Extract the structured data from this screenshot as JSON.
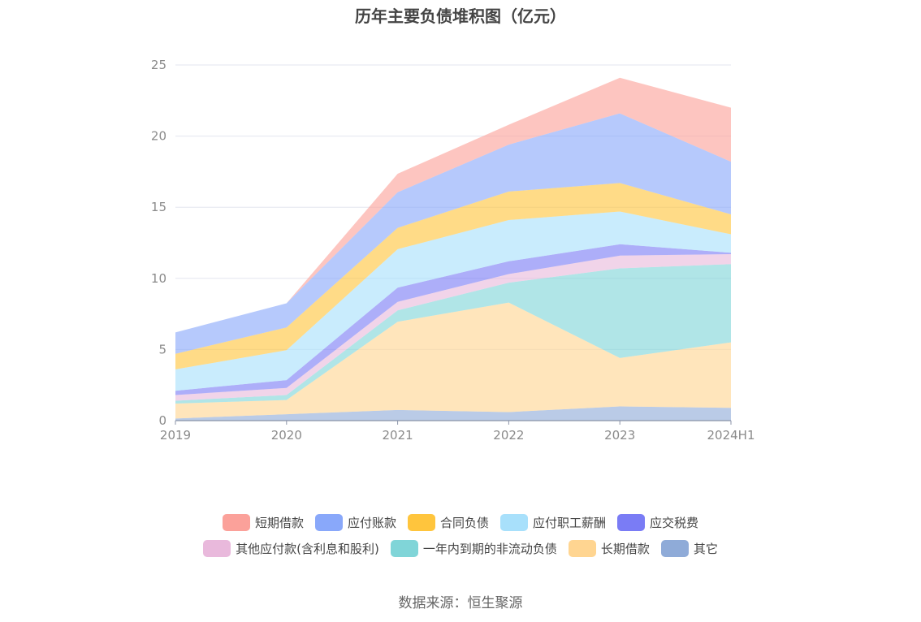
{
  "title": "历年主要负债堆积图（亿元）",
  "source": "数据来源：恒生聚源",
  "chart_data": {
    "type": "area",
    "stacked": true,
    "categories": [
      "2019",
      "2020",
      "2021",
      "2022",
      "2023",
      "2024H1"
    ],
    "ylim": [
      0,
      25
    ],
    "yticks": [
      "0",
      "5",
      "10",
      "15",
      "20",
      "25"
    ],
    "grid": true,
    "legend_position": "bottom",
    "series": [
      {
        "name": "其它",
        "color": "#8fabd8",
        "values": [
          0.15,
          0.45,
          0.75,
          0.6,
          1.0,
          0.9
        ]
      },
      {
        "name": "长期借款",
        "color": "#ffd591",
        "values": [
          1.05,
          1.0,
          6.2,
          7.7,
          3.4,
          4.6
        ]
      },
      {
        "name": "一年内到期的非流动负债",
        "color": "#80d5d8",
        "values": [
          0.2,
          0.35,
          0.8,
          1.4,
          6.3,
          5.5
        ]
      },
      {
        "name": "其他应付款(含利息和股利)",
        "color": "#e9b9dc",
        "values": [
          0.4,
          0.5,
          0.6,
          0.6,
          0.9,
          0.7
        ]
      },
      {
        "name": "应交税费",
        "color": "#7a7cf5",
        "values": [
          0.3,
          0.55,
          1.0,
          0.9,
          0.8,
          0.1
        ]
      },
      {
        "name": "应付职工薪酬",
        "color": "#a8e0fb",
        "values": [
          1.5,
          2.1,
          2.7,
          2.9,
          2.3,
          1.3
        ]
      },
      {
        "name": "合同负债",
        "color": "#ffc53d",
        "values": [
          1.1,
          1.6,
          1.5,
          2.0,
          2.0,
          1.4
        ]
      },
      {
        "name": "应付账款",
        "color": "#89a8fa",
        "values": [
          1.5,
          1.7,
          2.5,
          3.3,
          4.9,
          3.7
        ]
      },
      {
        "name": "短期借款",
        "color": "#fba19a",
        "values": [
          0.0,
          0.0,
          1.3,
          1.4,
          2.5,
          3.8
        ]
      }
    ]
  },
  "legend_order": [
    [
      "短期借款",
      "应付账款",
      "合同负债",
      "应付职工薪酬",
      "应交税费"
    ],
    [
      "其他应付款(含利息和股利)",
      "一年内到期的非流动负债",
      "长期借款",
      "其它"
    ]
  ]
}
